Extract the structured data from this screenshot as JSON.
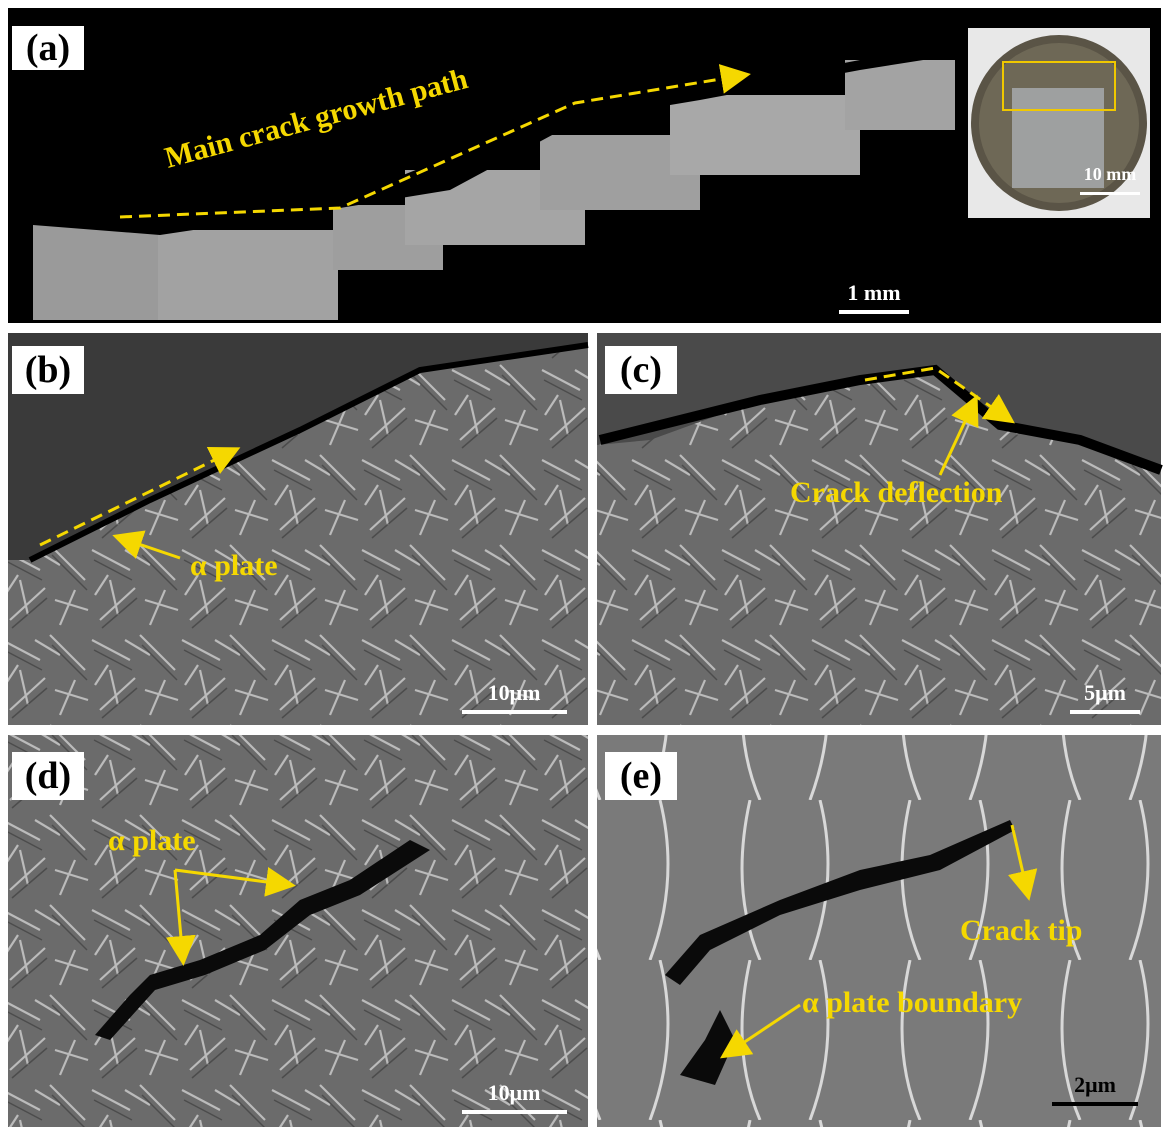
{
  "panels": [
    {
      "label": "(a)",
      "annotations": [
        "Main crack growth path"
      ],
      "scale_bar": "1 mm",
      "inset_scale_bar": "10 mm"
    },
    {
      "label": "(b)",
      "annotations": [
        "α plate"
      ],
      "scale_bar": "10μm"
    },
    {
      "label": "(c)",
      "annotations": [
        "Crack deflection"
      ],
      "scale_bar": "5μm"
    },
    {
      "label": "(d)",
      "annotations": [
        "α plate"
      ],
      "scale_bar": "10μm"
    },
    {
      "label": "(e)",
      "annotations": [
        "Crack tip",
        "α plate boundary"
      ],
      "scale_bar": "2μm"
    }
  ]
}
